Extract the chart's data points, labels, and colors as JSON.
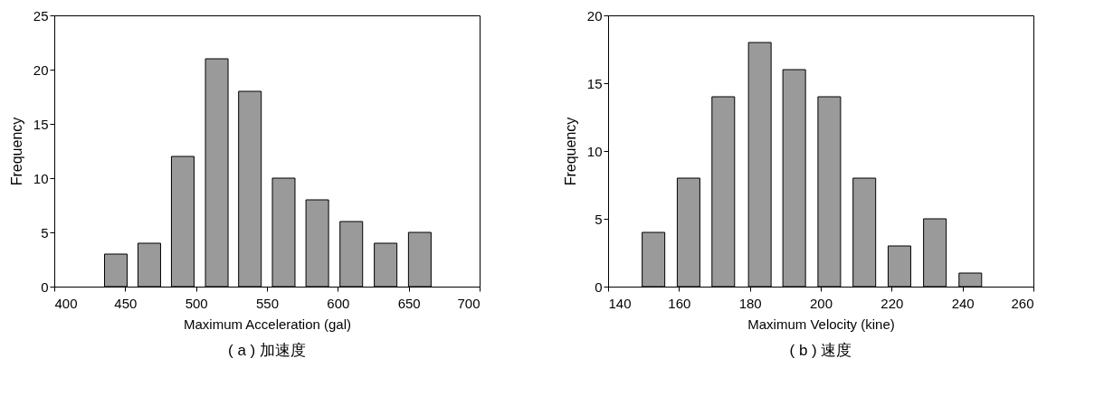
{
  "chart_data": [
    {
      "type": "bar",
      "title": "( a ) 加速度",
      "xlabel": "Maximum Acceleration (gal)",
      "ylabel": "Frequency",
      "x": [
        443.4,
        467,
        490.6,
        514.6,
        538,
        561.8,
        585.5,
        609.5,
        633.7,
        657.8
      ],
      "series": [
        {
          "color": "#9a9a9a",
          "values": [
            3,
            4,
            12,
            21,
            18,
            10,
            8,
            6,
            4,
            5
          ]
        }
      ],
      "xlim": [
        400,
        700
      ],
      "xticks": [
        400,
        450,
        500,
        550,
        600,
        650,
        700
      ],
      "ylim": [
        0,
        25
      ],
      "yticks": [
        0,
        5,
        10,
        15,
        20,
        25
      ]
    },
    {
      "type": "bar",
      "title": "( b ) 速度",
      "xlabel": "Maximum Velocity (kine)",
      "ylabel": "Frequency",
      "x": [
        152.8,
        162.7,
        172.5,
        182.8,
        192.5,
        202.4,
        212.3,
        222.2,
        232.2,
        242.2
      ],
      "series": [
        {
          "color": "#9a9a9a",
          "values": [
            4,
            8,
            14,
            18,
            16,
            14,
            8,
            3,
            5,
            1
          ]
        }
      ],
      "xlim": [
        140,
        260
      ],
      "xticks": [
        140,
        160,
        180,
        200,
        220,
        240,
        260
      ],
      "ylim": [
        0,
        20
      ],
      "yticks": [
        0,
        5,
        10,
        15,
        20
      ]
    }
  ]
}
